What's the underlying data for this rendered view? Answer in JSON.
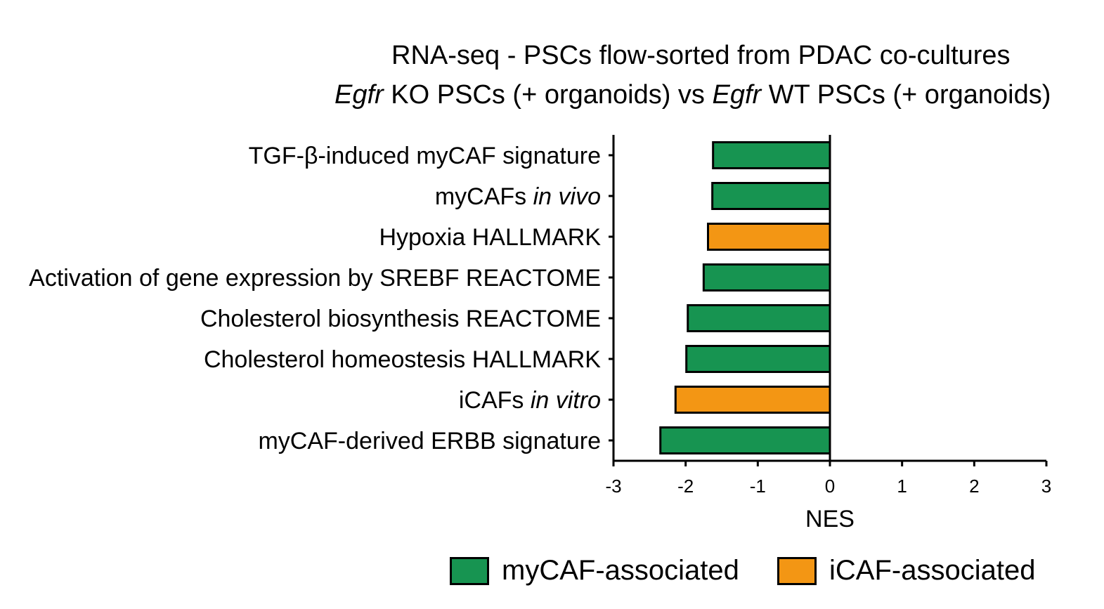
{
  "title_line1": "RNA-seq - PSCs flow-sorted from PDAC co-cultures",
  "title_line2": {
    "part1_italic": "Egfr",
    "part2": " KO PSCs (+ organoids)  vs ",
    "part3_italic": "Egfr",
    "part4": " WT PSCs (+ organoids)"
  },
  "colors": {
    "myCAF": "#179451",
    "iCAF": "#f39614"
  },
  "legend": {
    "mycaf_label": "myCAF-associated",
    "icaf_label": "iCAF-associated"
  },
  "chart_data": {
    "type": "bar",
    "orientation": "horizontal",
    "xlabel": "NES",
    "xlim": [
      -3,
      3
    ],
    "xticks": [
      -3,
      -2,
      -1,
      0,
      1,
      2,
      3
    ],
    "grid": false,
    "legend_position": "bottom",
    "categories": [
      {
        "pre": "TGF-β-induced myCAF signature",
        "italic": "",
        "value": -1.62,
        "group": "myCAF"
      },
      {
        "pre": "myCAFs ",
        "italic": "in vivo",
        "value": -1.63,
        "group": "myCAF"
      },
      {
        "pre": "Hypoxia HALLMARK",
        "italic": "",
        "value": -1.69,
        "group": "iCAF"
      },
      {
        "pre": "Activation of gene expression by SREBF REACTOME",
        "italic": "",
        "value": -1.75,
        "group": "myCAF"
      },
      {
        "pre": "Cholesterol biosynthesis REACTOME",
        "italic": "",
        "value": -1.97,
        "group": "myCAF"
      },
      {
        "pre": "Cholesterol homeostesis HALLMARK",
        "italic": "",
        "value": -1.99,
        "group": "myCAF"
      },
      {
        "pre": "iCAFs ",
        "italic": "in vitro",
        "value": -2.14,
        "group": "iCAF"
      },
      {
        "pre": "myCAF-derived ERBB signature",
        "italic": "",
        "value": -2.35,
        "group": "myCAF"
      }
    ]
  }
}
